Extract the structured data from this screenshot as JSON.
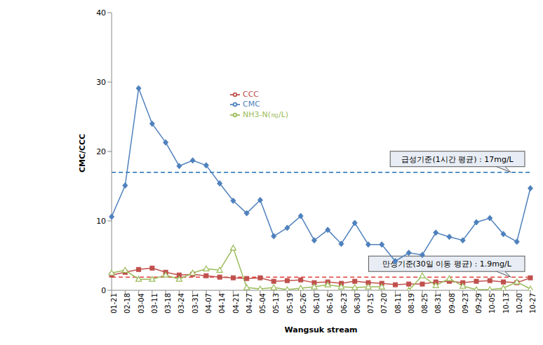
{
  "chart_data": {
    "type": "line",
    "x_label": "Wangsuk stream",
    "y_label": "CMC/CCC",
    "categories": [
      "01-21",
      "02-18",
      "03-04",
      "03-11",
      "03-18",
      "03-24",
      "03-31",
      "04-07",
      "04-14",
      "04-21",
      "04-27",
      "05-04",
      "05-13",
      "05-19",
      "05-26",
      "06-10",
      "06-16",
      "06-23",
      "06-30",
      "07-15",
      "07-20",
      "08-11",
      "08-19",
      "08-25",
      "08-31",
      "09-08",
      "09-23",
      "09-29",
      "10-05",
      "10-13",
      "10-20",
      "10-27"
    ],
    "series": [
      {
        "name": "CMC",
        "color": "#4f81bd",
        "marker": "diamond",
        "values": [
          10.6,
          15.1,
          29.1,
          24.0,
          21.3,
          17.9,
          18.7,
          18.0,
          15.4,
          12.9,
          11.1,
          13.0,
          7.8,
          9.0,
          10.7,
          7.2,
          8.7,
          6.7,
          9.7,
          6.6,
          6.6,
          4.2,
          5.4,
          5.1,
          8.3,
          7.7,
          7.2,
          9.8,
          10.4,
          8.1,
          7.0,
          14.7
        ]
      },
      {
        "name": "CCC",
        "color": "#c0504d",
        "marker": "square",
        "values": [
          2.2,
          2.6,
          3.0,
          3.2,
          2.6,
          2.2,
          2.3,
          2.1,
          1.9,
          1.8,
          1.7,
          1.8,
          1.3,
          1.4,
          1.5,
          1.1,
          1.2,
          1.0,
          1.3,
          1.1,
          1.0,
          0.8,
          0.9,
          0.9,
          1.2,
          1.3,
          1.1,
          1.3,
          1.4,
          1.2,
          1.1,
          1.8
        ]
      },
      {
        "name": "NH3-N(㎎/L)",
        "color": "#9bbb59",
        "marker": "triangle",
        "values": [
          2.5,
          2.9,
          1.6,
          1.6,
          2.2,
          1.6,
          2.5,
          3.1,
          2.9,
          6.1,
          0.4,
          0.2,
          0.4,
          0.1,
          0.3,
          0.5,
          0.8,
          0.5,
          0.4,
          0.5,
          0.5,
          null,
          0.0,
          2.1,
          0.7,
          1.7,
          0.6,
          0.1,
          0.1,
          0.3,
          1.2,
          0.2
        ]
      }
    ],
    "ylim": [
      0,
      40
    ],
    "yticks": [
      0,
      10,
      20,
      30,
      40
    ],
    "grid": false,
    "legend": "top",
    "reference_lines": [
      {
        "label": "급성기준(1시간 평균) : 17mg/L",
        "value": 17,
        "color": "#1f6fb5",
        "line_style": "dashed"
      },
      {
        "label": "만성기준(30일 이동 평균) : 1.9mg/L",
        "value": 1.9,
        "color": "#e0413a",
        "line_style": "dashed"
      }
    ]
  }
}
